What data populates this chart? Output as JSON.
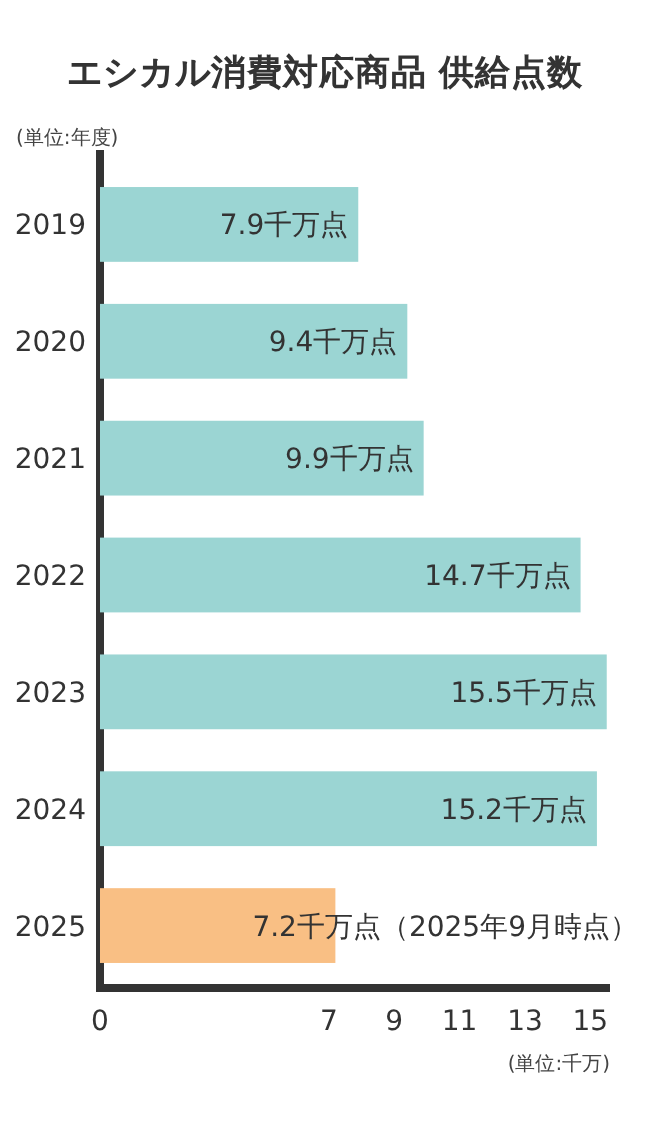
{
  "chart_data": {
    "type": "bar",
    "orientation": "horizontal",
    "title": "エシカル消費対応商品 供給点数",
    "ylabel": "(単位:年度)",
    "xlabel": "(単位:千万)",
    "categories": [
      "2019",
      "2020",
      "2021",
      "2022",
      "2023",
      "2024",
      "2025"
    ],
    "values": [
      7.9,
      9.4,
      9.9,
      14.7,
      15.5,
      15.2,
      7.2
    ],
    "colors": [
      "#9bd5d3",
      "#9bd5d3",
      "#9bd5d3",
      "#9bd5d3",
      "#9bd5d3",
      "#9bd5d3",
      "#f9bf84"
    ],
    "value_labels": [
      "7.9千万点",
      "9.4千万点",
      "9.9千万点",
      "14.7千万点",
      "15.5千万点",
      "15.2千万点",
      "7.2千万点（2025年9月時点）"
    ],
    "xlim": [
      0,
      15.6
    ],
    "xticks": [
      0,
      7,
      9,
      11,
      13,
      15
    ]
  }
}
